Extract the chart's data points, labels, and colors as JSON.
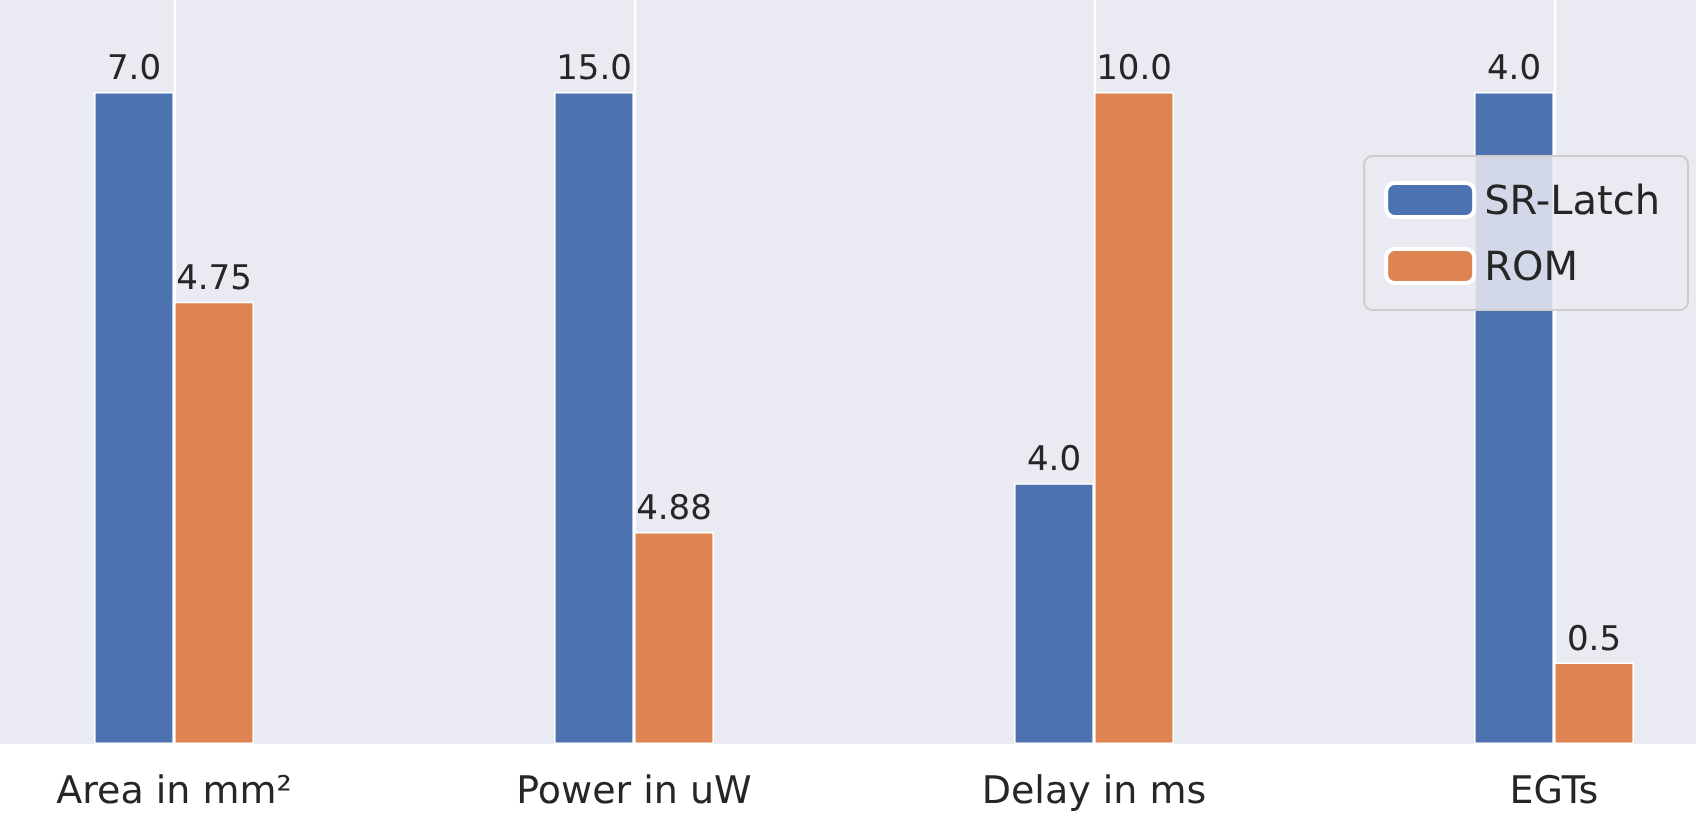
{
  "chart_data": [
    {
      "type": "bar",
      "categories": [
        "Area in mm²"
      ],
      "series": [
        {
          "color": "#4c72b0",
          "values": [
            7
          ],
          "value_labels": [
            "7.0"
          ]
        },
        {
          "color": "#dd8452",
          "values": [
            4.75
          ],
          "value_labels": [
            "4.75"
          ]
        }
      ],
      "grid": "x"
    },
    {
      "type": "bar",
      "categories": [
        "Power in uW"
      ],
      "series": [
        {
          "color": "#4c72b0",
          "values": [
            15
          ],
          "value_labels": [
            "15.0"
          ]
        },
        {
          "color": "#dd8452",
          "values": [
            4.88
          ],
          "value_labels": [
            "4.88"
          ]
        }
      ],
      "grid": "x"
    },
    {
      "type": "bar",
      "categories": [
        "Delay in ms"
      ],
      "series": [
        {
          "color": "#4c72b0",
          "values": [
            4
          ],
          "value_labels": [
            "4.0"
          ]
        },
        {
          "color": "#dd8452",
          "values": [
            10
          ],
          "value_labels": [
            "10.0"
          ]
        }
      ],
      "grid": "x"
    },
    {
      "type": "bar",
      "categories": [
        "EGTs"
      ],
      "series": [
        {
          "name": "SR-Latch",
          "color": "#4c72b0",
          "values": [
            4
          ],
          "value_labels": [
            "4.0"
          ]
        },
        {
          "name": "ROM",
          "color": "#dd8452",
          "values": [
            0.5
          ],
          "value_labels": [
            "0.5"
          ]
        }
      ],
      "grid": "x",
      "legend": "top right"
    }
  ]
}
